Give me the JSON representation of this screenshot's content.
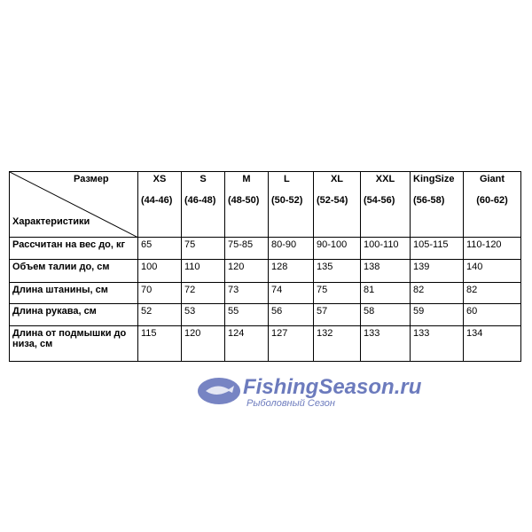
{
  "header": {
    "size_label": "Размер",
    "char_label": "Характеристики"
  },
  "sizes": [
    {
      "name": "XS",
      "range": "(44-46)"
    },
    {
      "name": "S",
      "range": "(46-48)"
    },
    {
      "name": "M",
      "range": "(48-50)"
    },
    {
      "name": "L",
      "range": "(50-52)"
    },
    {
      "name": "XL",
      "range": "(52-54)"
    },
    {
      "name": "XXL",
      "range": "(54-56)"
    },
    {
      "name": "KingSize",
      "range": "(56-58)"
    },
    {
      "name": "Giant",
      "range": "(60-62)"
    }
  ],
  "rows": [
    {
      "label": "Рассчитан на вес до, кг",
      "values": [
        "65",
        "75",
        "75-85",
        "80-90",
        "90-100",
        "100-110",
        "105-115",
        "110-120"
      ]
    },
    {
      "label": "Объем талии до, см",
      "values": [
        "100",
        "110",
        "120",
        "128",
        "135",
        "138",
        "139",
        "140"
      ]
    },
    {
      "label": "Длина штанины, см",
      "values": [
        "70",
        "72",
        "73",
        "74",
        "75",
        "81",
        "82",
        "82"
      ]
    },
    {
      "label": "Длина рукава, см",
      "values": [
        "52",
        "53",
        "55",
        "56",
        "57",
        "58",
        "59",
        "60"
      ]
    },
    {
      "label": "Длина от подмышки до низа, см",
      "values": [
        "115",
        "120",
        "124",
        "127",
        "132",
        "133",
        "133",
        "134"
      ]
    }
  ],
  "watermark": {
    "title": "FishingSeason.ru",
    "subtitle": "Рыболовный Сезон"
  }
}
